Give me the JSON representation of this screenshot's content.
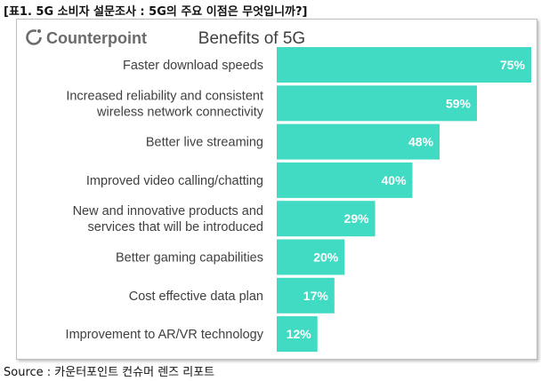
{
  "caption": "[표1. 5G 소비자 설문조사 : 5G의 주요 이점은 무엇입니까?]",
  "brand": {
    "name": "Counterpoint",
    "color": "#6b6b6b"
  },
  "source": "Source : 카운터포인트 컨슈머 렌즈 리포트",
  "chart_data": {
    "type": "bar",
    "orientation": "horizontal",
    "title": "Benefits of 5G",
    "bar_color": "#40dbc2",
    "value_label_color": "#ffffff",
    "categories": [
      [
        "Faster download speeds"
      ],
      [
        "Increased reliability and consistent",
        "wireless network connectivity"
      ],
      [
        "Better live streaming"
      ],
      [
        "Improved video calling/chatting"
      ],
      [
        "New and innovative products and",
        "services that will be introduced"
      ],
      [
        "Better gaming capabilities"
      ],
      [
        "Cost effective data plan"
      ],
      [
        "Improvement to AR/VR technology"
      ]
    ],
    "values": [
      75,
      59,
      48,
      40,
      29,
      20,
      17,
      12
    ],
    "value_labels": [
      "75%",
      "59%",
      "48%",
      "40%",
      "29%",
      "20%",
      "17%",
      "12%"
    ],
    "xlim": [
      0,
      75
    ],
    "grid": false,
    "legend": "none"
  }
}
